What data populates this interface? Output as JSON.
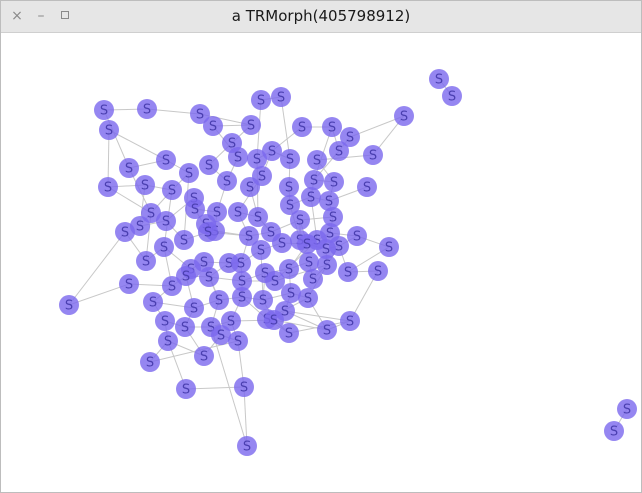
{
  "window": {
    "title": "a TRMorph(405798912)",
    "close_glyph": "×",
    "minimize_glyph": "–",
    "icons": [
      "close-icon",
      "minimize-icon",
      "maximize-icon"
    ]
  },
  "graph": {
    "node_label": "S",
    "node_color": "#7b68ee",
    "edge_color": "#c8c8c8",
    "node_count": 120
  }
}
